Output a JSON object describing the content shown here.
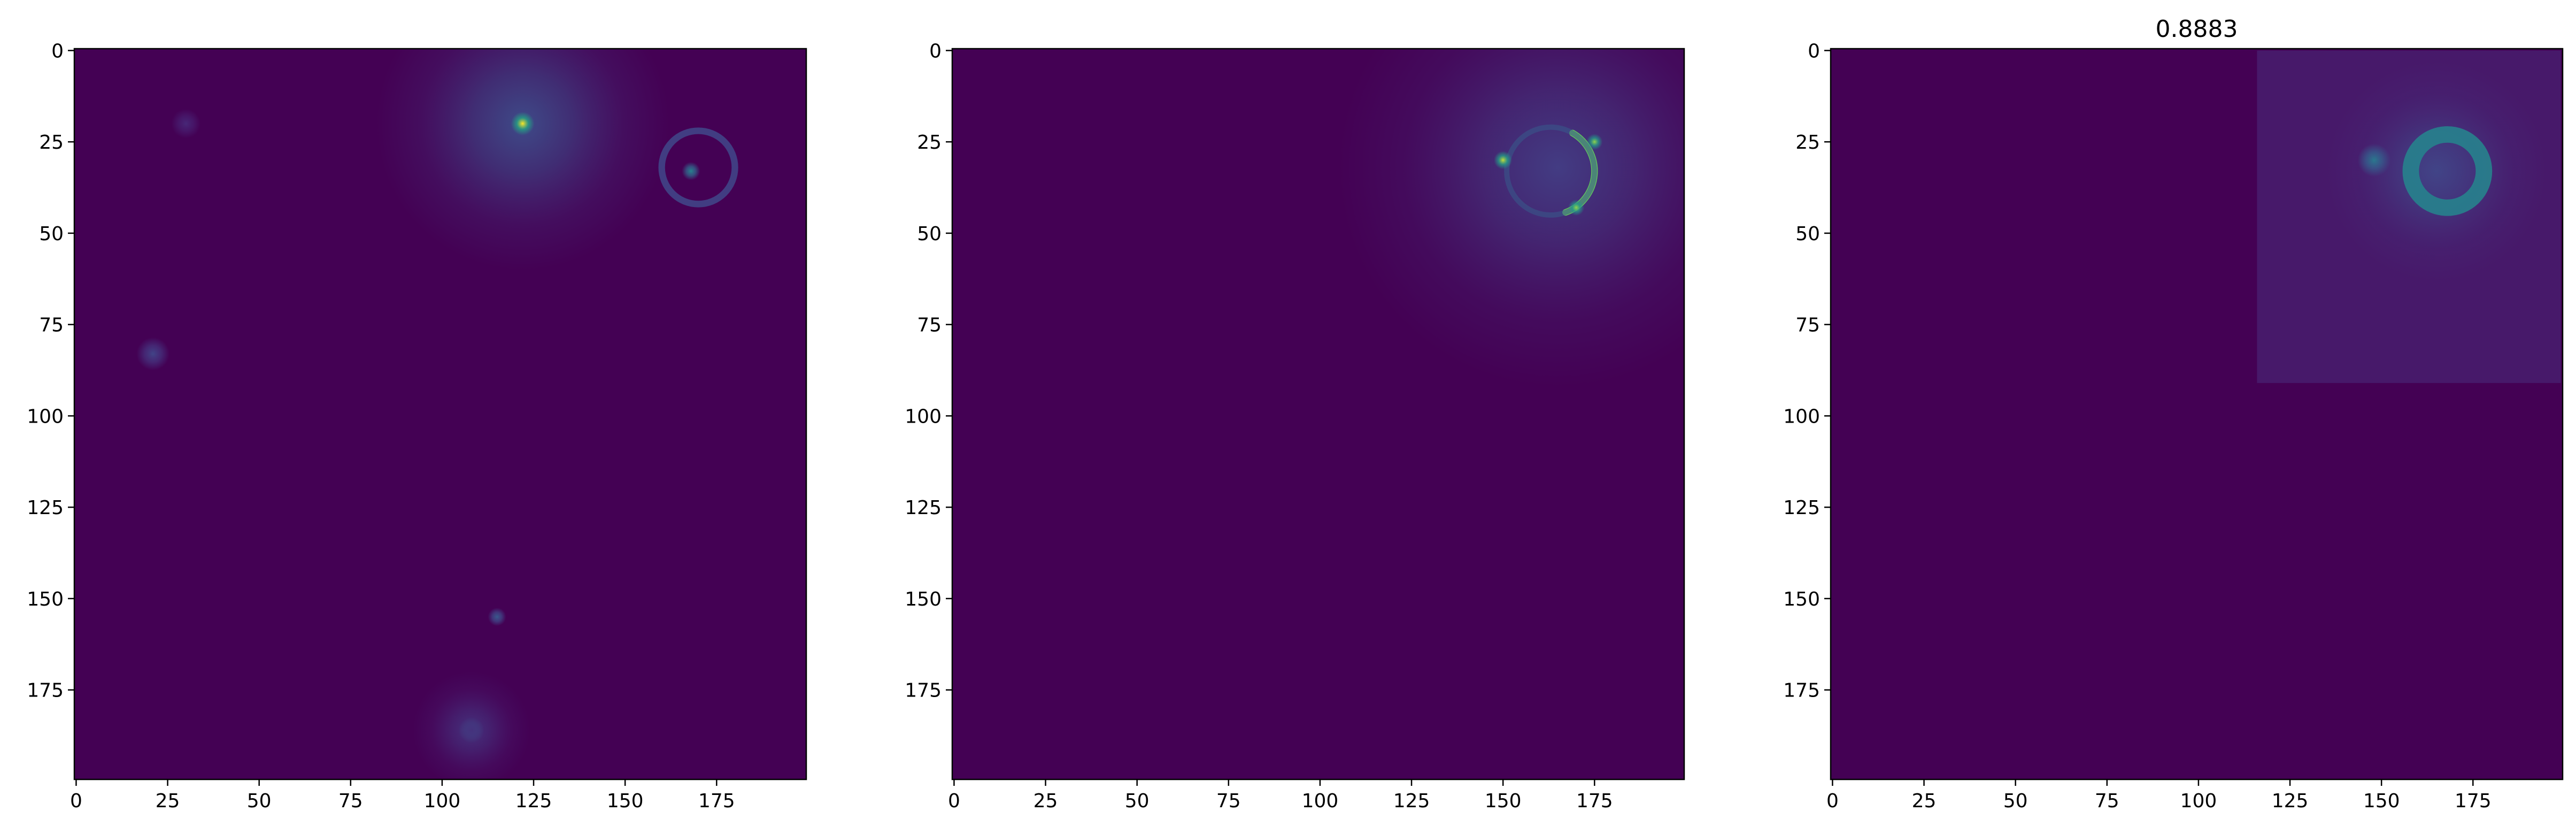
{
  "chart_data": [
    {
      "type": "heatmap",
      "title": "",
      "colormap": "viridis",
      "background": "#440154",
      "xlim": [
        0,
        199
      ],
      "ylim": [
        199,
        0
      ],
      "x_ticks": [
        0,
        25,
        50,
        75,
        100,
        125,
        150,
        175
      ],
      "y_ticks": [
        0,
        25,
        50,
        75,
        100,
        125,
        150,
        175
      ],
      "features": [
        {
          "kind": "glow",
          "x": 122,
          "y": 20,
          "r": 40,
          "peak": 0.28
        },
        {
          "kind": "blob",
          "x": 122,
          "y": 20,
          "r": 3.2,
          "peak": 1.0
        },
        {
          "kind": "blob",
          "x": 108,
          "y": 186,
          "r": 3.5,
          "peak": 0.55
        },
        {
          "kind": "glow",
          "x": 108,
          "y": 186,
          "r": 16,
          "peak": 0.18
        },
        {
          "kind": "blob",
          "x": 21,
          "y": 83,
          "r": 4.5,
          "peak": 0.25
        },
        {
          "kind": "blob",
          "x": 30,
          "y": 20,
          "r": 4,
          "peak": 0.14
        },
        {
          "kind": "blob",
          "x": 115,
          "y": 155,
          "r": 2.5,
          "peak": 0.35
        },
        {
          "kind": "blob",
          "x": 168,
          "y": 33,
          "r": 2.5,
          "peak": 0.55
        },
        {
          "kind": "ring",
          "x": 170,
          "y": 32,
          "r": 10,
          "w": 1.8,
          "peak": 0.25
        }
      ]
    },
    {
      "type": "heatmap",
      "title": "",
      "colormap": "viridis",
      "background": "#440154",
      "xlim": [
        0,
        199
      ],
      "ylim": [
        199,
        0
      ],
      "x_ticks": [
        0,
        25,
        50,
        75,
        100,
        125,
        150,
        175
      ],
      "y_ticks": [
        0,
        25,
        50,
        75,
        100,
        125,
        150,
        175
      ],
      "features": [
        {
          "kind": "glow",
          "x": 165,
          "y": 32,
          "r": 60,
          "peak": 0.22
        },
        {
          "kind": "arc",
          "x": 163,
          "y": 33,
          "r": 12,
          "w": 1.8,
          "peak": 0.85
        },
        {
          "kind": "blob",
          "x": 150,
          "y": 30,
          "r": 2.5,
          "peak": 0.95
        },
        {
          "kind": "blob",
          "x": 175,
          "y": 25,
          "r": 2.2,
          "peak": 0.9
        },
        {
          "kind": "blob",
          "x": 170,
          "y": 43,
          "r": 2.2,
          "peak": 0.9
        }
      ]
    },
    {
      "type": "heatmap",
      "title": "0.8883",
      "colormap": "viridis",
      "background": "#440154",
      "xlim": [
        0,
        199
      ],
      "ylim": [
        199,
        0
      ],
      "x_ticks": [
        0,
        25,
        50,
        75,
        100,
        125,
        150,
        175
      ],
      "y_ticks": [
        0,
        25,
        50,
        75,
        100,
        125,
        150,
        175
      ],
      "features": [
        {
          "kind": "box",
          "x0": 116,
          "y0": 0,
          "x1": 199,
          "y1": 91,
          "peak": 0.12
        },
        {
          "kind": "glow",
          "x": 165,
          "y": 33,
          "r": 30,
          "peak": 0.25
        },
        {
          "kind": "ring",
          "x": 168,
          "y": 33,
          "r": 10,
          "w": 4.5,
          "peak": 0.55
        },
        {
          "kind": "blob",
          "x": 148,
          "y": 30,
          "r": 4.5,
          "peak": 0.5
        }
      ]
    }
  ]
}
